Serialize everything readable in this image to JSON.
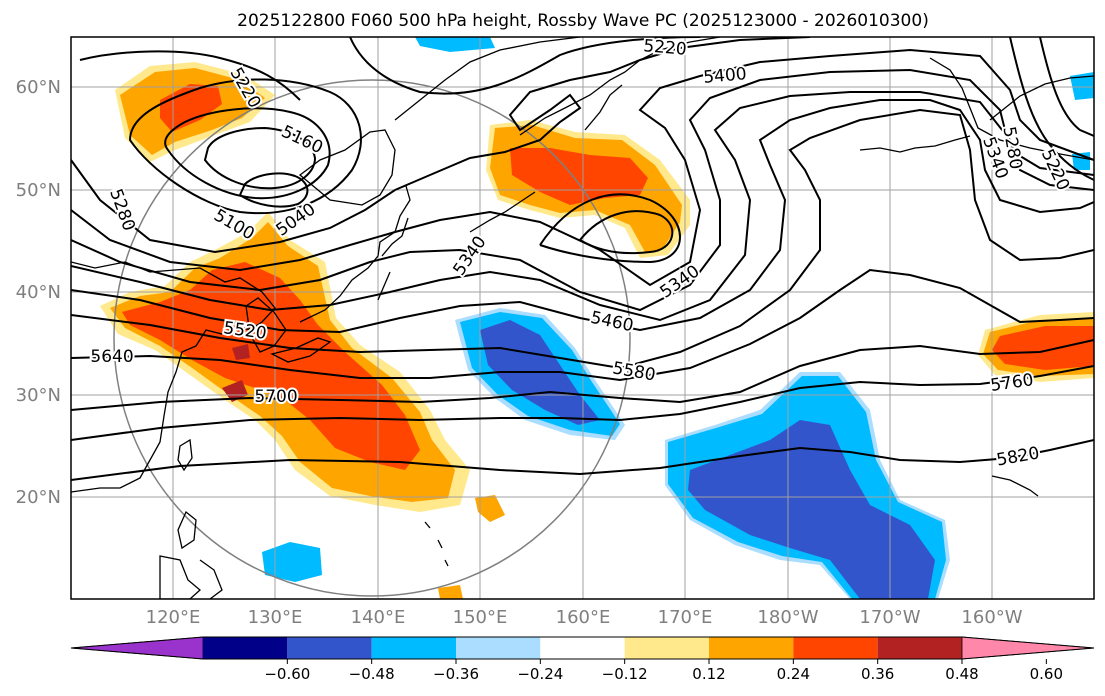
{
  "title": "2025122800 F060 500 hPa height, Rossby Wave PC (2025123000 - 2026010300)",
  "axes": {
    "lat_labels": [
      "60°N",
      "50°N",
      "40°N",
      "30°N",
      "20°N"
    ],
    "lon_labels": [
      "120°E",
      "130°E",
      "140°E",
      "150°E",
      "160°E",
      "170°E",
      "180°W",
      "170°W",
      "160°W"
    ]
  },
  "contour_labels": [
    {
      "text": "5220",
      "rot": 5
    },
    {
      "text": "5400",
      "rot": -5
    },
    {
      "text": "5220",
      "rot": 60
    },
    {
      "text": "5160",
      "rot": 25
    },
    {
      "text": "5280",
      "rot": 70
    },
    {
      "text": "5100",
      "rot": 30
    },
    {
      "text": "5040",
      "rot": -35
    },
    {
      "text": "5340",
      "rot": -55
    },
    {
      "text": "5340",
      "rot": -35
    },
    {
      "text": "5460",
      "rot": 12
    },
    {
      "text": "5520",
      "rot": 8
    },
    {
      "text": "5640",
      "rot": 0
    },
    {
      "text": "5580",
      "rot": 10
    },
    {
      "text": "5700",
      "rot": 0
    },
    {
      "text": "5760",
      "rot": -8
    },
    {
      "text": "5820",
      "rot": -10
    },
    {
      "text": "5280",
      "rot": 80
    },
    {
      "text": "5340",
      "rot": 70
    },
    {
      "text": "5220",
      "rot": 65
    }
  ],
  "colorbar": {
    "tick_labels": [
      "−0.60",
      "−0.48",
      "−0.36",
      "−0.24",
      "−0.12",
      "0.12",
      "0.24",
      "0.36",
      "0.48",
      "0.60"
    ],
    "colors": [
      "#9933cc",
      "#000088",
      "#3355cc",
      "#00bbff",
      "#aaddff",
      "#ffffff",
      "#ffe98c",
      "#ffa500",
      "#ff4500",
      "#b22222",
      "#ff88aa"
    ]
  }
}
